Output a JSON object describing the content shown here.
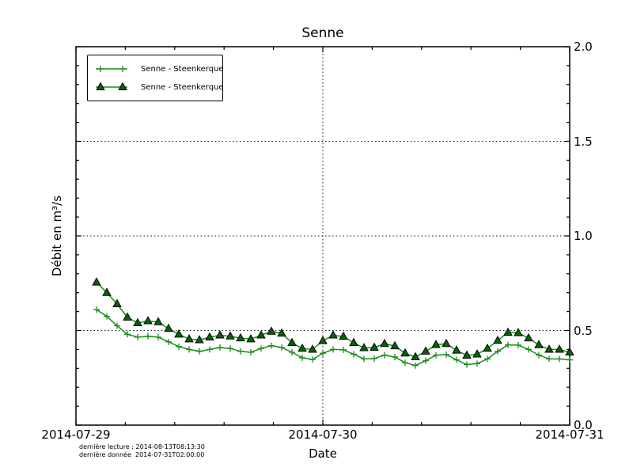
{
  "chart_data": {
    "type": "line",
    "title": "Senne",
    "xlabel": "Date",
    "ylabel": "Débit en m³/s",
    "ylim": [
      0.0,
      2.0
    ],
    "yticks": [
      {
        "value": 0.0,
        "label": "0.0"
      },
      {
        "value": 0.5,
        "label": "0.5"
      },
      {
        "value": 1.0,
        "label": "1.0"
      },
      {
        "value": 1.5,
        "label": "1.5"
      },
      {
        "value": 2.0,
        "label": "2.0"
      }
    ],
    "y_minor_step": 0.1,
    "x_axis": {
      "range_hours": [
        0,
        48
      ],
      "ticks": [
        {
          "hour": 0,
          "label": "2014-07-29"
        },
        {
          "hour": 24,
          "label": "2014-07-30"
        },
        {
          "hour": 48,
          "label": "2014-07-31"
        }
      ],
      "minor_divisions": 5
    },
    "grid": {
      "style": "dotted",
      "color": "#000000"
    },
    "legend_position": "upper-left",
    "series": [
      {
        "name": "Senne - Steenkerque",
        "marker": "plus",
        "color": "#1a8c1a",
        "x_start_hour": 2,
        "x_step_hours": 1,
        "values": [
          0.61,
          0.575,
          0.525,
          0.48,
          0.465,
          0.47,
          0.465,
          0.44,
          0.415,
          0.4,
          0.39,
          0.4,
          0.41,
          0.405,
          0.39,
          0.385,
          0.405,
          0.42,
          0.41,
          0.385,
          0.356,
          0.347,
          0.38,
          0.4,
          0.398,
          0.375,
          0.35,
          0.352,
          0.37,
          0.36,
          0.33,
          0.315,
          0.34,
          0.37,
          0.373,
          0.345,
          0.32,
          0.325,
          0.35,
          0.39,
          0.424,
          0.423,
          0.4,
          0.37,
          0.35,
          0.35,
          0.345
        ]
      },
      {
        "name": "Senne - Steenkerque",
        "marker": "triangle",
        "color": "#1a8c1a",
        "marker_fill": "#0c5f0c",
        "marker_edge": "#000000",
        "x_start_hour": 2,
        "x_step_hours": 1,
        "values": [
          0.755,
          0.7,
          0.64,
          0.57,
          0.54,
          0.55,
          0.545,
          0.51,
          0.48,
          0.455,
          0.45,
          0.465,
          0.475,
          0.47,
          0.46,
          0.455,
          0.475,
          0.495,
          0.485,
          0.435,
          0.405,
          0.4,
          0.445,
          0.475,
          0.468,
          0.435,
          0.408,
          0.41,
          0.43,
          0.418,
          0.38,
          0.36,
          0.39,
          0.425,
          0.43,
          0.395,
          0.368,
          0.375,
          0.405,
          0.447,
          0.49,
          0.488,
          0.46,
          0.424,
          0.4,
          0.4,
          0.385
        ]
      }
    ],
    "annotations": [
      "dernière lecture : 2014-08-13T08:13:30",
      "dernière donnée  2014-07-31T02:00:00"
    ]
  }
}
